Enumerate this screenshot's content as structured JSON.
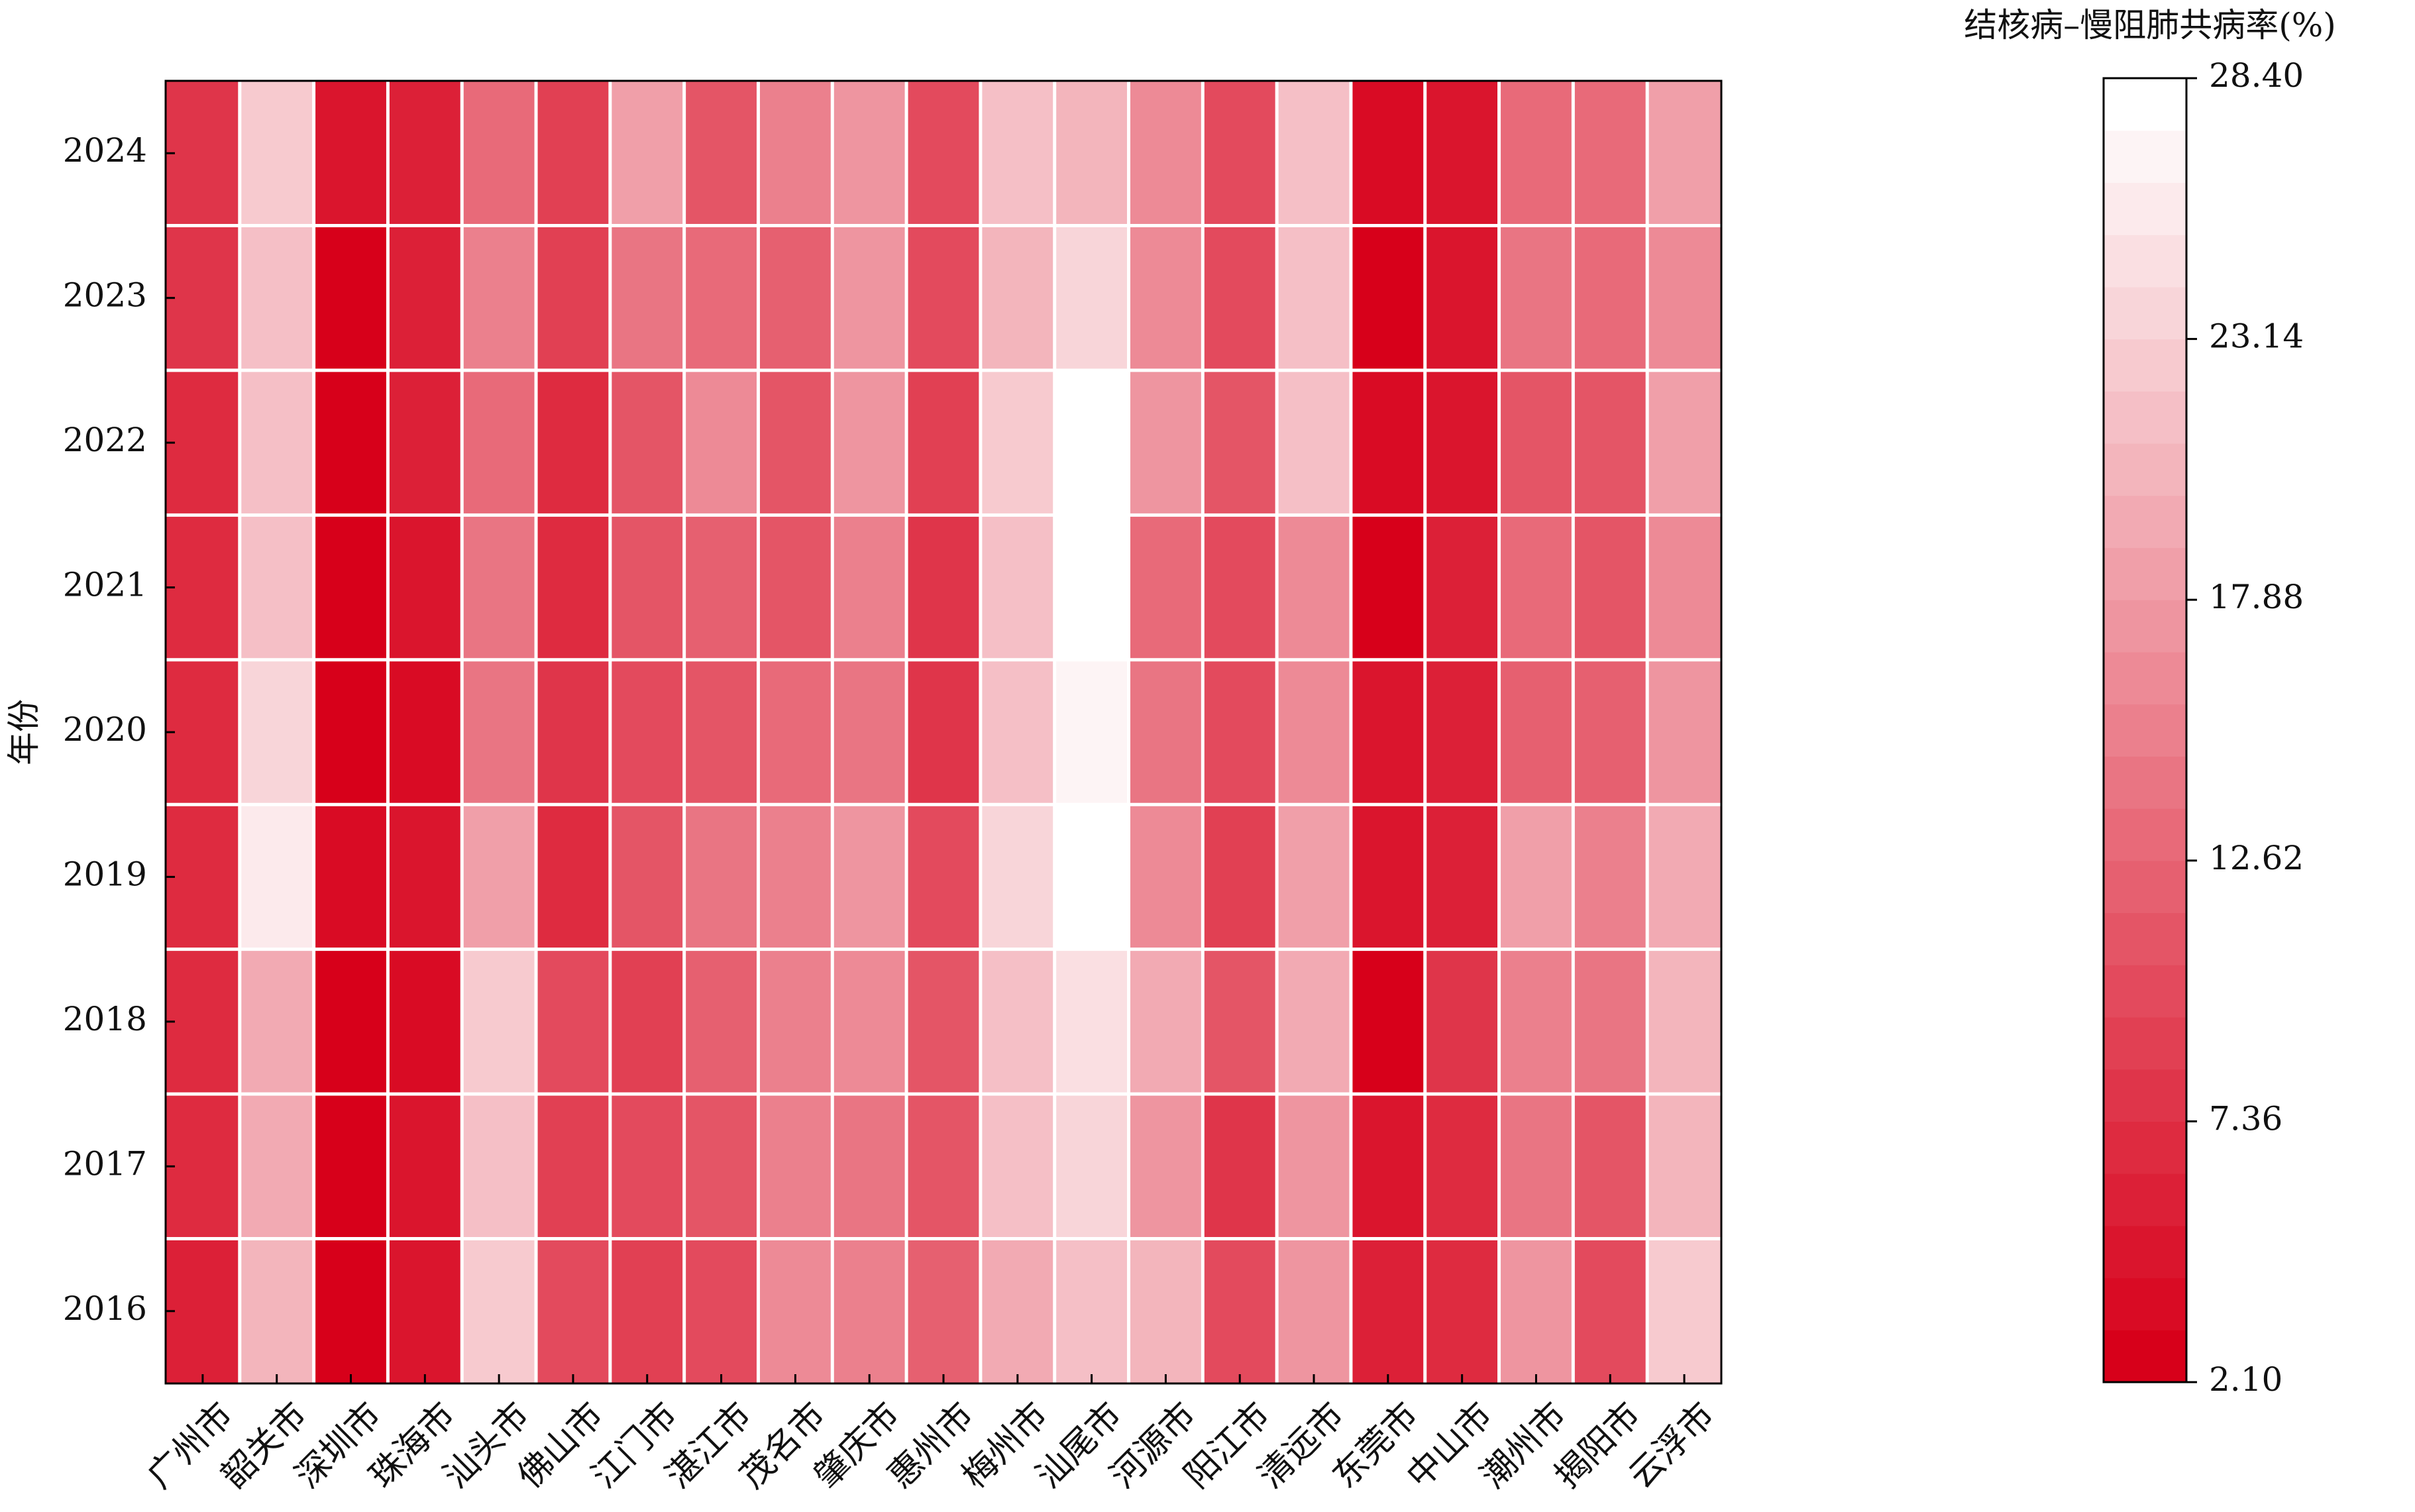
{
  "chart_data": {
    "type": "heatmap",
    "ylabel": "年份",
    "colorbar_label": "结核病–慢阻肺共病率(%)",
    "colorbar_ticks": [
      "2.10",
      "7.36",
      "12.62",
      "17.88",
      "23.14",
      "28.40"
    ],
    "vmin": 2.1,
    "vmax": 28.4,
    "colormap": {
      "low": "#d7001a",
      "high": "#ffffff",
      "levels": 25
    },
    "grid_color": "#ffffff",
    "columns": [
      "广州市",
      "韶关市",
      "深圳市",
      "珠海市",
      "汕头市",
      "佛山市",
      "江门市",
      "湛江市",
      "茂名市",
      "肇庆市",
      "惠州市",
      "梅州市",
      "汕尾市",
      "河源市",
      "阳江市",
      "清远市",
      "东莞市",
      "中山市",
      "潮州市",
      "揭阳市",
      "云浮市"
    ],
    "rows": [
      "2024",
      "2023",
      "2022",
      "2021",
      "2020",
      "2019",
      "2018",
      "2017",
      "2016"
    ],
    "values": [
      [
        7.5,
        22.5,
        4.5,
        6.0,
        13.0,
        8.5,
        18.5,
        11.0,
        15.5,
        17.0,
        10.5,
        22.0,
        21.0,
        16.5,
        10.0,
        21.5,
        3.5,
        5.0,
        13.5,
        13.5,
        18.5
      ],
      [
        7.5,
        22.0,
        2.5,
        5.5,
        15.5,
        9.0,
        14.5,
        13.0,
        12.0,
        17.0,
        10.5,
        21.0,
        23.5,
        16.5,
        10.5,
        21.5,
        3.0,
        5.0,
        14.0,
        13.5,
        16.5
      ],
      [
        6.5,
        22.0,
        2.5,
        5.5,
        13.0,
        7.0,
        11.0,
        16.5,
        11.5,
        17.5,
        9.0,
        23.0,
        28.4,
        17.0,
        11.0,
        22.0,
        3.5,
        5.0,
        11.0,
        11.5,
        18.0
      ],
      [
        6.5,
        22.0,
        2.5,
        5.0,
        14.0,
        6.5,
        11.5,
        12.0,
        11.5,
        15.0,
        7.5,
        21.5,
        27.5,
        13.0,
        10.5,
        16.5,
        2.1,
        6.0,
        13.0,
        11.5,
        16.5
      ],
      [
        6.5,
        24.0,
        2.5,
        4.0,
        14.5,
        7.5,
        10.0,
        11.0,
        13.0,
        14.0,
        8.0,
        22.0,
        26.5,
        14.5,
        10.0,
        16.5,
        4.5,
        6.0,
        12.0,
        12.5,
        17.0
      ],
      [
        7.0,
        25.5,
        3.5,
        4.5,
        18.5,
        7.0,
        11.0,
        14.0,
        15.0,
        17.5,
        10.5,
        24.0,
        27.5,
        16.5,
        8.5,
        18.5,
        4.5,
        6.0,
        18.5,
        15.0,
        19.0
      ],
      [
        7.0,
        19.0,
        2.5,
        4.0,
        23.0,
        9.5,
        9.0,
        12.0,
        15.5,
        16.0,
        11.5,
        22.0,
        25.0,
        19.0,
        11.0,
        19.5,
        3.0,
        7.5,
        15.5,
        14.0,
        20.5
      ],
      [
        7.0,
        19.0,
        2.5,
        5.0,
        21.5,
        9.0,
        10.5,
        11.0,
        15.0,
        14.0,
        11.0,
        21.5,
        24.0,
        17.5,
        8.0,
        17.5,
        5.0,
        6.5,
        14.0,
        11.0,
        20.5
      ],
      [
        6.0,
        20.0,
        2.5,
        5.0,
        22.5,
        9.5,
        9.0,
        10.0,
        16.5,
        15.0,
        12.0,
        19.0,
        21.5,
        20.0,
        10.5,
        17.5,
        5.5,
        7.0,
        17.0,
        10.0,
        22.5
      ]
    ]
  }
}
